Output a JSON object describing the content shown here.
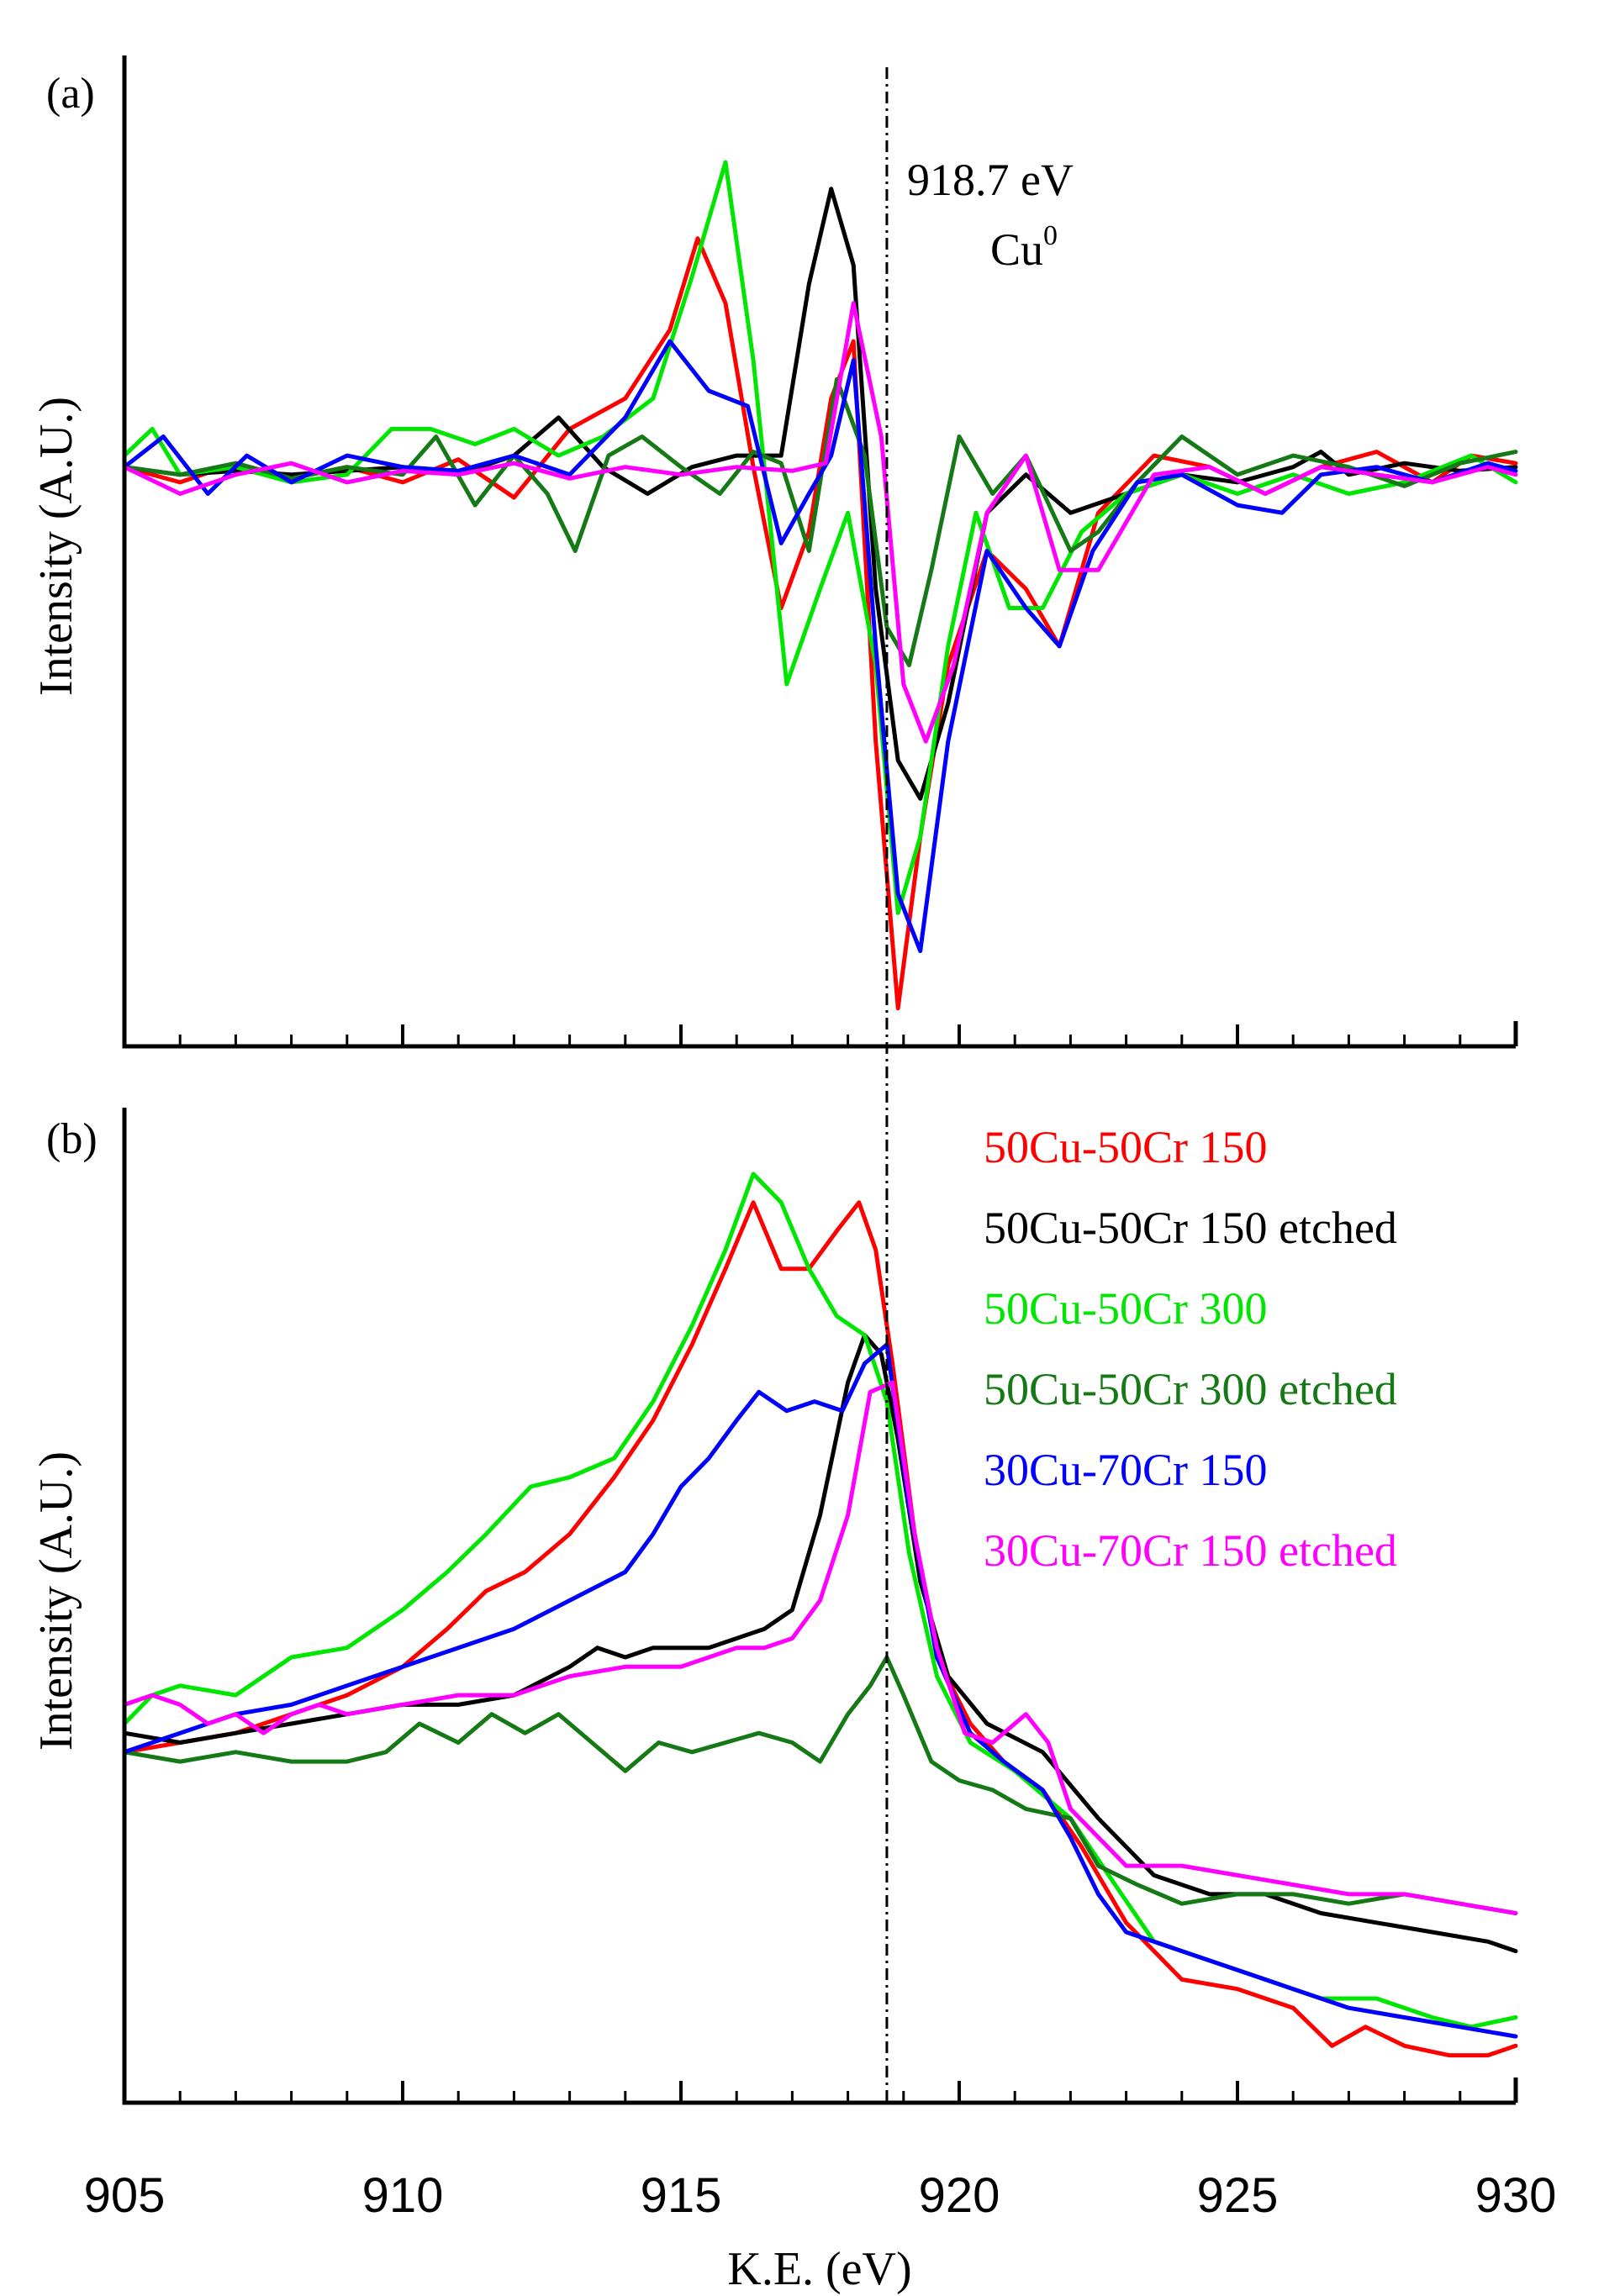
{
  "figure": {
    "xlabel": "K.E. (eV)",
    "xlim": [
      905,
      930
    ],
    "xticks": [
      905,
      910,
      915,
      920,
      925,
      930
    ],
    "reference_line": {
      "x": 918.7,
      "label": "918.7 eV",
      "species_base": "Cu",
      "species_sup": "0"
    }
  },
  "series_legend": [
    {
      "name": "50Cu-50Cr 150",
      "color": "#ff0000"
    },
    {
      "name": "50Cu-50Cr 150 etched",
      "color": "#000000"
    },
    {
      "name": "50Cu-50Cr 300",
      "color": "#00e600"
    },
    {
      "name": "50Cu-50Cr 300 etched",
      "color": "#157a15"
    },
    {
      "name": "30Cu-70Cr 150",
      "color": "#0000ff"
    },
    {
      "name": "30Cu-70Cr 150 etched",
      "color": "#ff00ff"
    }
  ],
  "chart_data": [
    {
      "type": "line",
      "panel_label": "(a)",
      "title": "",
      "xlabel": "",
      "ylabel": "Intensity (A.U.)",
      "xlim": [
        905,
        930
      ],
      "ylim": [
        -1.5,
        1.1
      ],
      "series": [
        {
          "name": "50Cu-50Cr 150",
          "color": "#ff0000",
          "x": [
            905,
            906,
            907,
            908,
            909,
            910,
            911,
            912,
            913,
            914,
            914.8,
            915.3,
            915.8,
            916.3,
            916.8,
            917.3,
            917.7,
            918.1,
            918.5,
            918.9,
            919.3,
            919.8,
            920.5,
            921.2,
            921.8,
            922.5,
            923.5,
            924.5,
            925.5,
            926.5,
            927.5,
            928.5,
            929.2,
            930
          ],
          "y": [
            0.02,
            -0.02,
            0.03,
            -0.01,
            0.02,
            -0.02,
            0.04,
            -0.06,
            0.12,
            0.2,
            0.38,
            0.62,
            0.45,
            0.02,
            -0.35,
            -0.15,
            0.2,
            0.35,
            -0.7,
            -1.4,
            -0.95,
            -0.5,
            -0.2,
            -0.3,
            -0.45,
            -0.1,
            0.05,
            0.02,
            -0.05,
            0.02,
            0.06,
            -0.02,
            0.05,
            0.03
          ]
        },
        {
          "name": "50Cu-50Cr 150 etched",
          "color": "#000000",
          "x": [
            905,
            906,
            907,
            908,
            909,
            910,
            911,
            912,
            912.8,
            913.6,
            914.4,
            915.2,
            916,
            916.8,
            917.3,
            917.7,
            918.1,
            918.5,
            918.9,
            919.3,
            919.8,
            920.5,
            921.2,
            922,
            923,
            924,
            925,
            926,
            926.5,
            927,
            928,
            929,
            930
          ],
          "y": [
            0.02,
            0,
            0.01,
            0,
            0.01,
            0.02,
            0,
            0.05,
            0.15,
            0.02,
            -0.05,
            0.02,
            0.05,
            0.05,
            0.5,
            0.75,
            0.55,
            -0.3,
            -0.75,
            -0.85,
            -0.6,
            -0.1,
            0,
            -0.1,
            -0.05,
            0,
            -0.02,
            0.02,
            0.06,
            0,
            0.03,
            0.01,
            0.02
          ]
        },
        {
          "name": "50Cu-50Cr 300",
          "color": "#00e600",
          "x": [
            905,
            905.5,
            906,
            907,
            908,
            909,
            909.8,
            910.5,
            911.3,
            912,
            912.8,
            913.6,
            914.5,
            915.2,
            915.8,
            916.3,
            916.9,
            917.5,
            918,
            918.5,
            918.9,
            919.3,
            919.8,
            920.3,
            920.9,
            921.5,
            922.2,
            923,
            924,
            925,
            926,
            927,
            928,
            929.2,
            930
          ],
          "y": [
            0.05,
            0.12,
            0,
            0.02,
            -0.02,
            0,
            0.12,
            0.12,
            0.08,
            0.12,
            0.05,
            0.1,
            0.2,
            0.52,
            0.82,
            0.3,
            -0.55,
            -0.3,
            -0.1,
            -0.5,
            -1.15,
            -0.95,
            -0.45,
            -0.1,
            -0.35,
            -0.35,
            -0.15,
            -0.05,
            0,
            -0.05,
            0,
            -0.05,
            -0.02,
            0.05,
            -0.02
          ]
        },
        {
          "name": "50Cu-50Cr 300 etched",
          "color": "#157a15",
          "x": [
            905,
            906,
            907,
            908,
            909,
            910,
            910.6,
            911.3,
            912,
            912.6,
            913.1,
            913.7,
            914.3,
            915,
            915.7,
            916.3,
            916.8,
            917.3,
            917.8,
            918.3,
            918.7,
            919.1,
            919.5,
            920,
            920.6,
            921.2,
            922,
            922.5,
            923.2,
            924,
            925,
            926,
            927,
            928,
            929,
            930
          ],
          "y": [
            0.02,
            0,
            0.03,
            -0.01,
            0.02,
            0,
            0.1,
            -0.08,
            0.05,
            -0.05,
            -0.2,
            0.05,
            0.1,
            0.02,
            -0.05,
            0.06,
            0.03,
            -0.2,
            0.25,
            0.05,
            -0.4,
            -0.5,
            -0.25,
            0.1,
            -0.05,
            0.05,
            -0.2,
            -0.15,
            -0.02,
            0.1,
            0,
            0.05,
            0.02,
            -0.03,
            0.03,
            0.06
          ]
        },
        {
          "name": "30Cu-70Cr 150",
          "color": "#0000ff",
          "x": [
            905,
            905.7,
            906.5,
            907.2,
            908,
            909,
            910,
            911,
            912,
            913,
            914,
            914.8,
            915.5,
            916.2,
            916.8,
            917.3,
            917.7,
            918.1,
            918.5,
            918.9,
            919.3,
            919.8,
            920.5,
            921.2,
            921.8,
            922.4,
            923.2,
            924,
            925,
            925.8,
            926.5,
            927.5,
            928.5,
            929.5,
            930
          ],
          "y": [
            0.02,
            0.1,
            -0.05,
            0.05,
            -0.02,
            0.05,
            0.02,
            0.01,
            0.05,
            0,
            0.15,
            0.35,
            0.22,
            0.18,
            -0.18,
            -0.05,
            0.05,
            0.3,
            -0.45,
            -1.1,
            -1.25,
            -0.7,
            -0.2,
            -0.35,
            -0.45,
            -0.2,
            -0.02,
            0,
            -0.08,
            -0.1,
            0,
            0.02,
            -0.02,
            0.03,
            0.01
          ]
        },
        {
          "name": "30Cu-70Cr 150 etched",
          "color": "#ff00ff",
          "x": [
            905,
            906,
            907,
            908,
            909,
            910,
            911,
            912,
            913,
            914,
            915,
            916,
            917,
            917.6,
            918.1,
            918.6,
            919,
            919.4,
            919.9,
            920.5,
            921.2,
            921.8,
            922.5,
            923.5,
            924.5,
            925.5,
            926.5,
            927.5,
            928.5,
            929.5,
            930
          ],
          "y": [
            0.02,
            -0.05,
            0,
            0.03,
            -0.02,
            0.01,
            0,
            0.03,
            -0.01,
            0.02,
            0,
            0.02,
            0.01,
            0.03,
            0.45,
            0.1,
            -0.55,
            -0.7,
            -0.5,
            -0.1,
            0.05,
            -0.25,
            -0.25,
            0,
            0.02,
            -0.05,
            0.02,
            0,
            -0.02,
            0.02,
            0
          ]
        }
      ]
    },
    {
      "type": "line",
      "panel_label": "(b)",
      "title": "",
      "xlabel": "K.E. (eV)",
      "ylabel": "Intensity (A.U.)",
      "xlim": [
        905,
        930
      ],
      "ylim": [
        0,
        1.05
      ],
      "series": [
        {
          "name": "50Cu-50Cr 150",
          "color": "#ff0000",
          "x": [
            905,
            906,
            907,
            908,
            909,
            910,
            910.8,
            911.5,
            912.2,
            913,
            913.8,
            914.5,
            915.2,
            915.8,
            916.3,
            916.8,
            917.3,
            917.8,
            918.2,
            918.5,
            918.8,
            919.2,
            919.6,
            920.2,
            920.8,
            921.5,
            922.2,
            923,
            924,
            925,
            926,
            926.7,
            927.3,
            928,
            928.8,
            929.5,
            930
          ],
          "y": [
            0.37,
            0.38,
            0.39,
            0.41,
            0.43,
            0.46,
            0.5,
            0.54,
            0.56,
            0.6,
            0.66,
            0.72,
            0.8,
            0.88,
            0.95,
            0.88,
            0.88,
            0.92,
            0.95,
            0.9,
            0.78,
            0.6,
            0.47,
            0.4,
            0.36,
            0.33,
            0.27,
            0.19,
            0.13,
            0.12,
            0.1,
            0.06,
            0.08,
            0.06,
            0.05,
            0.05,
            0.06
          ]
        },
        {
          "name": "50Cu-50Cr 150 etched",
          "color": "#000000",
          "x": [
            905,
            906,
            907,
            908,
            909,
            910,
            911,
            912,
            913,
            913.5,
            914,
            914.5,
            915,
            915.5,
            916,
            916.5,
            917,
            917.5,
            918,
            918.3,
            918.6,
            918.9,
            919.3,
            919.8,
            920.5,
            921.5,
            922.5,
            923.5,
            924.5,
            925.5,
            926.5,
            927.5,
            928.5,
            929.5,
            930
          ],
          "y": [
            0.39,
            0.38,
            0.39,
            0.4,
            0.41,
            0.42,
            0.42,
            0.43,
            0.46,
            0.48,
            0.47,
            0.48,
            0.48,
            0.48,
            0.49,
            0.5,
            0.52,
            0.62,
            0.76,
            0.81,
            0.79,
            0.7,
            0.55,
            0.45,
            0.4,
            0.37,
            0.3,
            0.24,
            0.22,
            0.22,
            0.2,
            0.19,
            0.18,
            0.17,
            0.16
          ]
        },
        {
          "name": "50Cu-50Cr 300",
          "color": "#00e600",
          "x": [
            905,
            905.5,
            906,
            907,
            908,
            909,
            910,
            910.8,
            911.5,
            912.3,
            913,
            913.8,
            914.5,
            915.2,
            915.8,
            916.3,
            916.8,
            917.3,
            917.8,
            918.3,
            918.7,
            919.1,
            919.6,
            920.2,
            921,
            922,
            922.8,
            923.5,
            924.5,
            925.5,
            926.5,
            927.5,
            928.5,
            929.2,
            930
          ],
          "y": [
            0.4,
            0.43,
            0.44,
            0.43,
            0.47,
            0.48,
            0.52,
            0.56,
            0.6,
            0.65,
            0.66,
            0.68,
            0.74,
            0.82,
            0.9,
            0.98,
            0.95,
            0.88,
            0.83,
            0.81,
            0.74,
            0.58,
            0.45,
            0.38,
            0.35,
            0.3,
            0.23,
            0.17,
            0.15,
            0.13,
            0.11,
            0.11,
            0.09,
            0.08,
            0.09
          ]
        },
        {
          "name": "50Cu-50Cr 300 etched",
          "color": "#157a15",
          "x": [
            905,
            906,
            907,
            908,
            909,
            909.7,
            910.3,
            911,
            911.6,
            912.2,
            912.8,
            913.4,
            914,
            914.6,
            915.2,
            915.8,
            916.4,
            917,
            917.5,
            918,
            918.4,
            918.7,
            919,
            919.5,
            920,
            920.6,
            921.2,
            922,
            922.5,
            923.2,
            924,
            925,
            926,
            927,
            928,
            929,
            930
          ],
          "y": [
            0.37,
            0.36,
            0.37,
            0.36,
            0.36,
            0.37,
            0.4,
            0.38,
            0.41,
            0.39,
            0.41,
            0.38,
            0.35,
            0.38,
            0.37,
            0.38,
            0.39,
            0.38,
            0.36,
            0.41,
            0.44,
            0.47,
            0.43,
            0.36,
            0.34,
            0.33,
            0.31,
            0.3,
            0.25,
            0.23,
            0.21,
            0.22,
            0.22,
            0.21,
            0.22,
            0.21,
            0.2
          ]
        },
        {
          "name": "30Cu-70Cr 150",
          "color": "#0000ff",
          "x": [
            905,
            906,
            907,
            908,
            909,
            910,
            911,
            912,
            913,
            914,
            914.5,
            915,
            915.5,
            916,
            916.4,
            916.9,
            917.4,
            917.9,
            918.3,
            918.7,
            919.1,
            919.6,
            920.2,
            920.8,
            921.5,
            922,
            922.5,
            923,
            924,
            925,
            926,
            927,
            928,
            929,
            930
          ],
          "y": [
            0.37,
            0.39,
            0.41,
            0.42,
            0.44,
            0.46,
            0.48,
            0.5,
            0.53,
            0.56,
            0.6,
            0.65,
            0.68,
            0.72,
            0.75,
            0.73,
            0.74,
            0.73,
            0.78,
            0.8,
            0.63,
            0.47,
            0.39,
            0.36,
            0.33,
            0.28,
            0.22,
            0.18,
            0.16,
            0.14,
            0.12,
            0.1,
            0.09,
            0.08,
            0.07
          ]
        },
        {
          "name": "30Cu-70Cr 150 etched",
          "color": "#ff00ff",
          "x": [
            905,
            905.5,
            906,
            906.5,
            907,
            907.5,
            908,
            908.5,
            909,
            910,
            911,
            912,
            912.5,
            913,
            914,
            915,
            916,
            916.5,
            917,
            917.5,
            918,
            918.4,
            918.8,
            919.2,
            919.6,
            920.1,
            920.6,
            921.2,
            921.6,
            922,
            922.5,
            923,
            924,
            925,
            926,
            927,
            928,
            929,
            930
          ],
          "y": [
            0.42,
            0.43,
            0.42,
            0.4,
            0.41,
            0.39,
            0.41,
            0.42,
            0.41,
            0.42,
            0.43,
            0.43,
            0.44,
            0.45,
            0.46,
            0.46,
            0.48,
            0.48,
            0.49,
            0.53,
            0.62,
            0.75,
            0.76,
            0.6,
            0.48,
            0.39,
            0.38,
            0.41,
            0.38,
            0.31,
            0.28,
            0.25,
            0.25,
            0.24,
            0.23,
            0.22,
            0.22,
            0.21,
            0.2
          ]
        }
      ]
    }
  ]
}
